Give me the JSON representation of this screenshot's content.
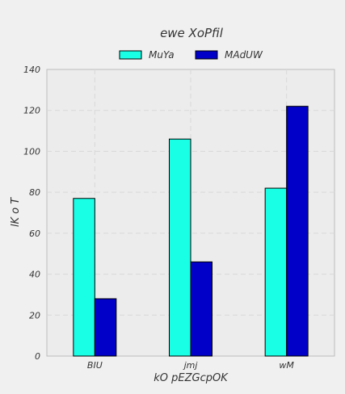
{
  "chart_data": {
    "type": "bar",
    "title": "ewe XoPfil",
    "xlabel": "kO  pEZGcpOK",
    "ylabel": "lK o T",
    "categories": [
      "BIU",
      "jmj",
      "wM"
    ],
    "series": [
      {
        "name": "MuYa",
        "values": [
          77,
          106,
          82
        ],
        "color": "#19ffe6"
      },
      {
        "name": "MAdUW",
        "values": [
          28,
          46,
          122
        ],
        "color": "#0000c8"
      }
    ],
    "ylim": [
      0,
      140
    ],
    "yticks": [
      0,
      20,
      40,
      60,
      80,
      100,
      120,
      140
    ],
    "grid": true,
    "legend_position": "top-center"
  },
  "colors": {
    "background": "#f0f0f0",
    "plot_background": "#ececec",
    "grid": "#d8d8d8",
    "axis": "#bbbbbb"
  }
}
